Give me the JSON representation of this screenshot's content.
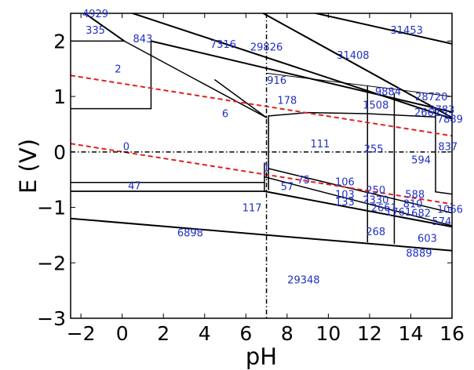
{
  "chart_data": {
    "type": "line",
    "title": "",
    "xlabel": "pH",
    "ylabel": "E (V)",
    "xlim": [
      -2.5,
      16
    ],
    "ylim": [
      -3,
      2.5
    ],
    "xticks": [
      -2,
      0,
      2,
      4,
      6,
      8,
      10,
      12,
      14,
      16
    ],
    "yticks": [
      -3,
      -2,
      -1,
      0,
      1,
      2
    ],
    "xtick_labels": [
      "−2",
      "0",
      "2",
      "4",
      "6",
      "8",
      "10",
      "12",
      "14",
      "16"
    ],
    "ytick_labels": [
      "−3",
      "−2",
      "−1",
      "0",
      "1",
      "2"
    ],
    "grid": false,
    "colors": {
      "boundary": "#000000",
      "water_lines": "#e02020",
      "region_labels": "#1f2fc8",
      "reference_lines": "#000000"
    },
    "reference_lines": {
      "vertical_x": 7,
      "horizontal_y": 0,
      "style": "dash-dot"
    },
    "water_stability_lines": [
      {
        "x": [
          -2.5,
          16
        ],
        "y": [
          1.38,
          0.29
        ]
      },
      {
        "x": [
          -2.5,
          16
        ],
        "y": [
          0.15,
          -0.94
        ]
      }
    ],
    "boundaries": [
      {
        "x": [
          -2,
          0.1
        ],
        "y": [
          2.55,
          2.0
        ],
        "w": 2
      },
      {
        "x": [
          -1.3,
          0.1
        ],
        "y": [
          2.55,
          2.55
        ],
        "w": 2
      },
      {
        "x": [
          0.1,
          16
        ],
        "y": [
          2.55,
          0.6
        ],
        "w": 2
      },
      {
        "x": [
          0.1,
          7
        ],
        "y": [
          2.0,
          0.62
        ],
        "w": 1.5
      },
      {
        "x": [
          1.4,
          16
        ],
        "y": [
          2.0,
          0.72
        ],
        "w": 2
      },
      {
        "x": [
          -2.5,
          0.1
        ],
        "y": [
          2.0,
          2.0
        ],
        "w": 1.5
      },
      {
        "x": [
          1.4,
          1.4
        ],
        "y": [
          2.0,
          0.78
        ],
        "w": 1.5
      },
      {
        "x": [
          -2.5,
          1.4
        ],
        "y": [
          0.78,
          0.78
        ],
        "w": 1.5
      },
      {
        "x": [
          4.5,
          7
        ],
        "y": [
          1.3,
          0.62
        ],
        "w": 1.5
      },
      {
        "x": [
          7,
          16
        ],
        "y": [
          1.42,
          1.0
        ],
        "w": 1
      },
      {
        "x": [
          6.6,
          16
        ],
        "y": [
          2.55,
          0.62
        ],
        "w": 2
      },
      {
        "x": [
          8.8,
          16
        ],
        "y": [
          2.55,
          1.95
        ],
        "w": 2
      },
      {
        "x": [
          7.1,
          7.1
        ],
        "y": [
          0.65,
          -0.68
        ],
        "w": 1.5
      },
      {
        "x": [
          7.1,
          9.0
        ],
        "y": [
          0.65,
          0.71
        ],
        "w": 1.5
      },
      {
        "x": [
          9.0,
          11.9
        ],
        "y": [
          0.71,
          0.69
        ],
        "w": 1.5
      },
      {
        "x": [
          11.9,
          15.2
        ],
        "y": [
          0.69,
          0.63
        ],
        "w": 1.5
      },
      {
        "x": [
          11.9,
          11.9
        ],
        "y": [
          1.18,
          -1.62
        ],
        "w": 1.5
      },
      {
        "x": [
          13.2,
          13.2
        ],
        "y": [
          1.05,
          -1.65
        ],
        "w": 1.5
      },
      {
        "x": [
          15.2,
          15.2
        ],
        "y": [
          0.78,
          -0.72
        ],
        "w": 1.5
      },
      {
        "x": [
          -2.5,
          6.9
        ],
        "y": [
          -0.55,
          -0.55
        ],
        "w": 1.5
      },
      {
        "x": [
          -2.5,
          6.9
        ],
        "y": [
          -0.71,
          -0.71
        ],
        "w": 1.5
      },
      {
        "x": [
          6.9,
          6.9
        ],
        "y": [
          -0.2,
          -0.71
        ],
        "w": 1.5
      },
      {
        "x": [
          6.9,
          16
        ],
        "y": [
          -0.71,
          -1.35
        ],
        "w": 2
      },
      {
        "x": [
          7.1,
          16
        ],
        "y": [
          -0.3,
          -1.1
        ],
        "w": 1.5
      },
      {
        "x": [
          6.9,
          16
        ],
        "y": [
          -0.45,
          -1.33
        ],
        "w": 1.5
      },
      {
        "x": [
          -2.5,
          6.9
        ],
        "y": [
          -0.71,
          -0.71
        ],
        "w": 1.5
      },
      {
        "x": [
          -2.5,
          16
        ],
        "y": [
          -1.2,
          -1.78
        ],
        "w": 2
      },
      {
        "x": [
          15.2,
          16
        ],
        "y": [
          -0.72,
          -0.76
        ],
        "w": 1.5
      }
    ],
    "region_labels": [
      {
        "text": "4929",
        "x": -1.3,
        "y": 2.5
      },
      {
        "text": "335",
        "x": -1.3,
        "y": 2.2
      },
      {
        "text": "843",
        "x": 1.0,
        "y": 2.05
      },
      {
        "text": "7316",
        "x": 4.9,
        "y": 1.95
      },
      {
        "text": "29826",
        "x": 7.0,
        "y": 1.9
      },
      {
        "text": "31453",
        "x": 13.8,
        "y": 2.2
      },
      {
        "text": "31408",
        "x": 11.2,
        "y": 1.75
      },
      {
        "text": "2",
        "x": -0.2,
        "y": 1.5
      },
      {
        "text": "916",
        "x": 7.5,
        "y": 1.3
      },
      {
        "text": "6",
        "x": 5.0,
        "y": 0.7
      },
      {
        "text": "178",
        "x": 8.0,
        "y": 0.94
      },
      {
        "text": "9884",
        "x": 12.9,
        "y": 1.09
      },
      {
        "text": "1508",
        "x": 12.3,
        "y": 0.85
      },
      {
        "text": "28720",
        "x": 15.0,
        "y": 1.0
      },
      {
        "text": "2662",
        "x": 14.8,
        "y": 0.72
      },
      {
        "text": "3783",
        "x": 15.5,
        "y": 0.77
      },
      {
        "text": "7889",
        "x": 15.9,
        "y": 0.6
      },
      {
        "text": "0",
        "x": 0.2,
        "y": 0.1
      },
      {
        "text": "111",
        "x": 9.6,
        "y": 0.15
      },
      {
        "text": "255",
        "x": 12.2,
        "y": 0.06
      },
      {
        "text": "837",
        "x": 15.8,
        "y": 0.1
      },
      {
        "text": "594",
        "x": 14.5,
        "y": -0.14
      },
      {
        "text": "1",
        "x": 7.0,
        "y": -0.28
      },
      {
        "text": "75",
        "x": 8.8,
        "y": -0.5
      },
      {
        "text": "106",
        "x": 10.8,
        "y": -0.53
      },
      {
        "text": "47",
        "x": 0.6,
        "y": -0.6
      },
      {
        "text": "57",
        "x": 8.0,
        "y": -0.62
      },
      {
        "text": "250",
        "x": 12.3,
        "y": -0.68
      },
      {
        "text": "588",
        "x": 14.2,
        "y": -0.76
      },
      {
        "text": "103",
        "x": 10.8,
        "y": -0.76
      },
      {
        "text": "133",
        "x": 10.8,
        "y": -0.89
      },
      {
        "text": "117",
        "x": 6.3,
        "y": -1.0
      },
      {
        "text": "2330",
        "x": 12.3,
        "y": -0.86
      },
      {
        "text": "810",
        "x": 14.1,
        "y": -0.93
      },
      {
        "text": "1066",
        "x": 15.9,
        "y": -1.03
      },
      {
        "text": "2661",
        "x": 12.7,
        "y": -1.0
      },
      {
        "text": "1761",
        "x": 13.4,
        "y": -1.08
      },
      {
        "text": "682",
        "x": 14.5,
        "y": -1.1
      },
      {
        "text": "574",
        "x": 15.5,
        "y": -1.25
      },
      {
        "text": "6898",
        "x": 3.3,
        "y": -1.45
      },
      {
        "text": "268",
        "x": 12.3,
        "y": -1.43
      },
      {
        "text": "603",
        "x": 14.8,
        "y": -1.55
      },
      {
        "text": "8889",
        "x": 14.4,
        "y": -1.82
      },
      {
        "text": "29348",
        "x": 8.8,
        "y": -2.3
      }
    ]
  }
}
